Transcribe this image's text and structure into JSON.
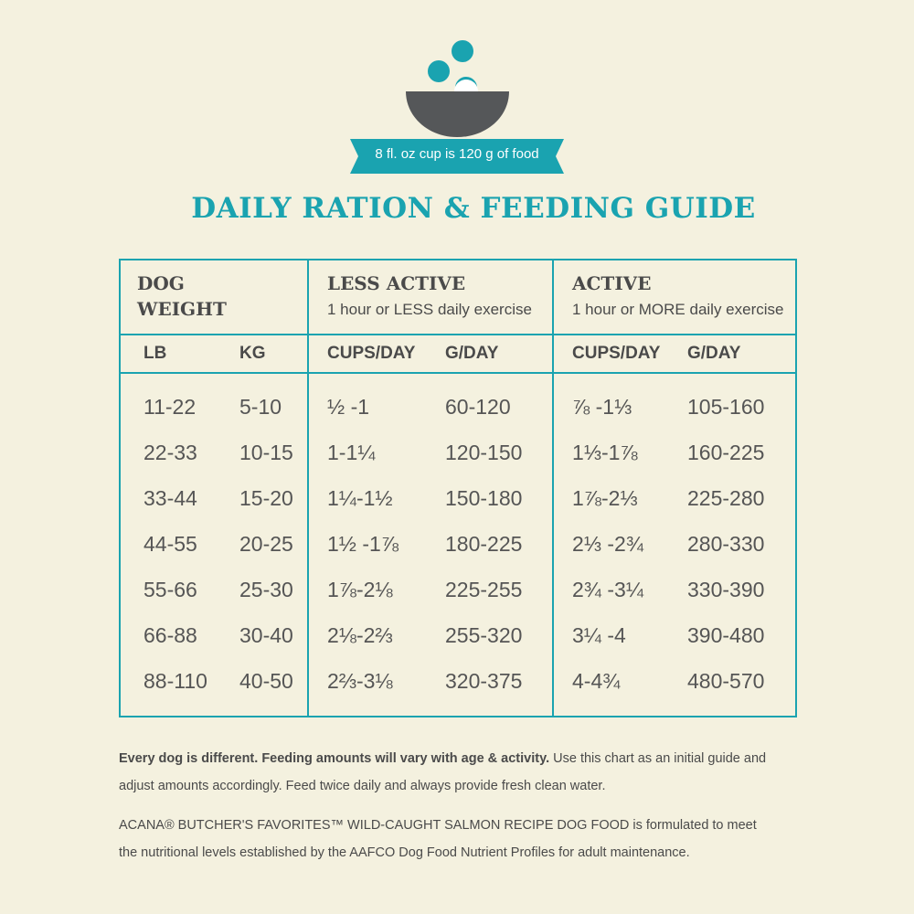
{
  "badge": "8 fl. oz cup is 120 g of food",
  "title": "DAILY RATION & FEEDING GUIDE",
  "table": {
    "groups": [
      {
        "title": "DOG WEIGHT"
      },
      {
        "title": "LESS ACTIVE",
        "subtitle": "1 hour or LESS daily exercise"
      },
      {
        "title": "ACTIVE",
        "subtitle": "1 hour or MORE daily exercise"
      }
    ],
    "columns": [
      "LB",
      "KG",
      "CUPS/DAY",
      "G/DAY",
      "CUPS/DAY",
      "G/DAY"
    ],
    "rows": [
      [
        "11-22",
        "5-10",
        "½ -1",
        "60-120",
        "⅞ -1⅓",
        "105-160"
      ],
      [
        "22-33",
        "10-15",
        "1-1¼",
        "120-150",
        "1⅓-1⅞",
        "160-225"
      ],
      [
        "33-44",
        "15-20",
        "1¼-1½",
        "150-180",
        "1⅞-2⅓",
        "225-280"
      ],
      [
        "44-55",
        "20-25",
        "1½ -1⅞",
        "180-225",
        "2⅓ -2¾",
        "280-330"
      ],
      [
        "55-66",
        "25-30",
        "1⅞-2⅛",
        "225-255",
        "2¾ -3¼",
        "330-390"
      ],
      [
        "66-88",
        "30-40",
        "2⅛-2⅔",
        "255-320",
        "3¼ -4",
        "390-480"
      ],
      [
        "88-110",
        "40-50",
        "2⅔-3⅛",
        "320-375",
        "4-4¾",
        "480-570"
      ]
    ]
  },
  "notes": [
    {
      "bold": "Every dog is different. Feeding amounts will vary with age & activity.",
      "text": " Use this chart as an initial guide and adjust amounts accordingly. Feed twice daily and always provide fresh clean water."
    },
    {
      "text": "ACANA® BUTCHER'S FAVORITES™ WILD-CAUGHT SALMON RECIPE DOG FOOD is formulated to meet the nutritional levels established by the AAFCO Dog Food Nutrient Profiles for adult maintenance."
    }
  ]
}
